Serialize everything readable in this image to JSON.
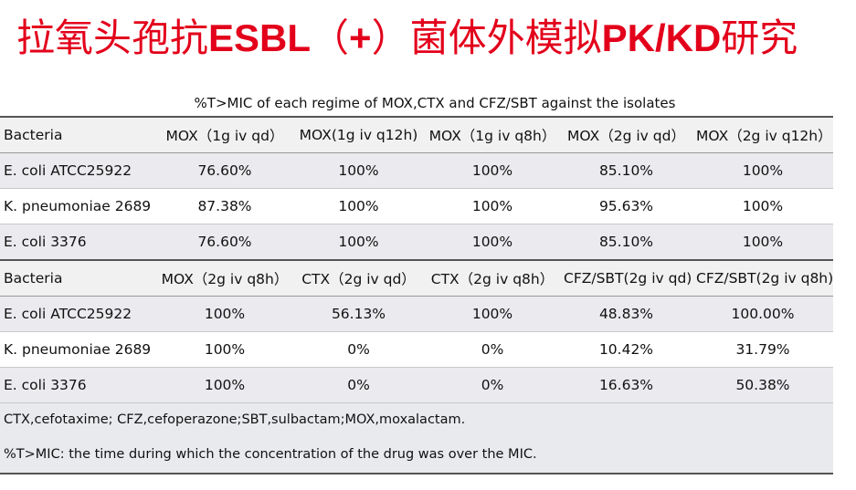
{
  "title": {
    "part1": "拉氧头孢抗",
    "part2": "ESBL",
    "part3": "（",
    "part4": "+",
    "part5": "）菌体外模拟",
    "part6": "PK/KD",
    "part7": "研究"
  },
  "table": {
    "caption": "%T>MIC of each regime of MOX,CTX and CFZ/SBT against the isolates",
    "section1": {
      "headers": [
        "Bacteria",
        "MOX（1g iv qd）",
        "MOX(1g iv q12h)",
        "MOX（1g iv q8h）",
        "MOX（2g iv qd）",
        "MOX（2g iv q12h）"
      ],
      "rows": [
        [
          "E. coli ATCC25922",
          "76.60%",
          "100%",
          "100%",
          "85.10%",
          "100%"
        ],
        [
          "K. pneumoniae 2689",
          "87.38%",
          "100%",
          "100%",
          "95.63%",
          "100%"
        ],
        [
          "E. coli 3376",
          "76.60%",
          "100%",
          "100%",
          "85.10%",
          "100%"
        ]
      ]
    },
    "section2": {
      "headers": [
        "Bacteria",
        "MOX（2g iv q8h）",
        "CTX（2g iv qd）",
        "CTX（2g iv q8h）",
        "CFZ/SBT(2g iv qd)",
        "CFZ/SBT(2g iv q8h)"
      ],
      "rows": [
        [
          "E. coli ATCC25922",
          "100%",
          "56.13%",
          "100%",
          "48.83%",
          "100.00%"
        ],
        [
          "K. pneumoniae 2689",
          "100%",
          "0%",
          "0%",
          "10.42%",
          "31.79%"
        ],
        [
          "E. coli 3376",
          "100%",
          "0%",
          "0%",
          "16.63%",
          "50.38%"
        ]
      ]
    },
    "notes": [
      "CTX,cefotaxime; CFZ,cefoperazone;SBT,sulbactam;MOX,moxalactam.",
      "%T>MIC: the time during which the concentration of the drug was over the MIC."
    ]
  },
  "colors": {
    "title": "#e3001b",
    "row_alt": "#ebebef",
    "header_bg": "#f1f1f1"
  }
}
